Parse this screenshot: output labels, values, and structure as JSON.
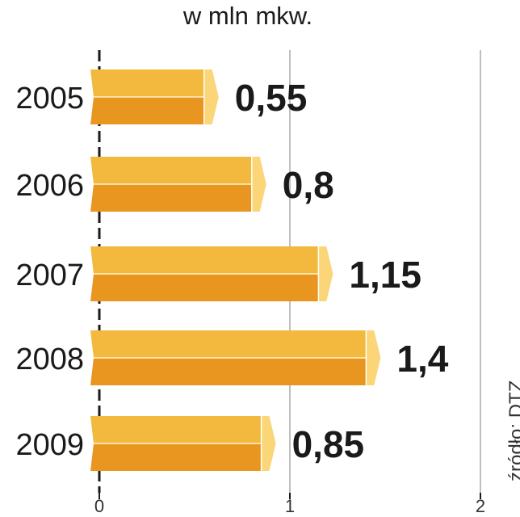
{
  "chart_data": {
    "type": "bar",
    "orientation": "horizontal",
    "title": "w mln mkw.",
    "source": "źródło: DTZ",
    "categories": [
      "2005",
      "2006",
      "2007",
      "2008",
      "2009"
    ],
    "values": [
      0.55,
      0.8,
      1.15,
      1.4,
      0.85
    ],
    "value_labels": [
      "0,55",
      "0,8",
      "1,15",
      "1,4",
      "0,85"
    ],
    "xlim": [
      0,
      2
    ],
    "x_ticks": [
      0,
      1,
      2
    ],
    "x_tick_labels": [
      "0",
      "1",
      "2"
    ],
    "grid": true,
    "colors": {
      "bar_top": "#f3b93f",
      "bar_bottom": "#e8961f",
      "bar_tip": "#fbd679",
      "grid": "#aaaaaa",
      "axis": "#1a1a1a",
      "text": "#1a1a1a"
    }
  }
}
